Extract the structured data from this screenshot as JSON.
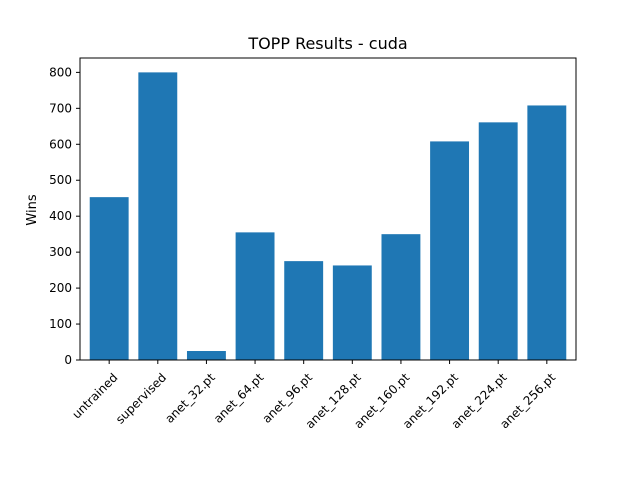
{
  "chart_data": {
    "type": "bar",
    "title": "TOPP Results - cuda",
    "xlabel": "",
    "ylabel": "Wins",
    "categories": [
      "untrained",
      "supervised",
      "anet_32.pt",
      "anet_64.pt",
      "anet_96.pt",
      "anet_128.pt",
      "anet_160.pt",
      "anet_192.pt",
      "anet_224.pt",
      "anet_256.pt"
    ],
    "values": [
      453,
      800,
      25,
      355,
      275,
      263,
      350,
      608,
      661,
      708
    ],
    "ylim": [
      0,
      840
    ],
    "yticks": [
      0,
      100,
      200,
      300,
      400,
      500,
      600,
      700,
      800
    ],
    "bar_color": "#1f77b4",
    "grid": false,
    "legend": "none"
  }
}
